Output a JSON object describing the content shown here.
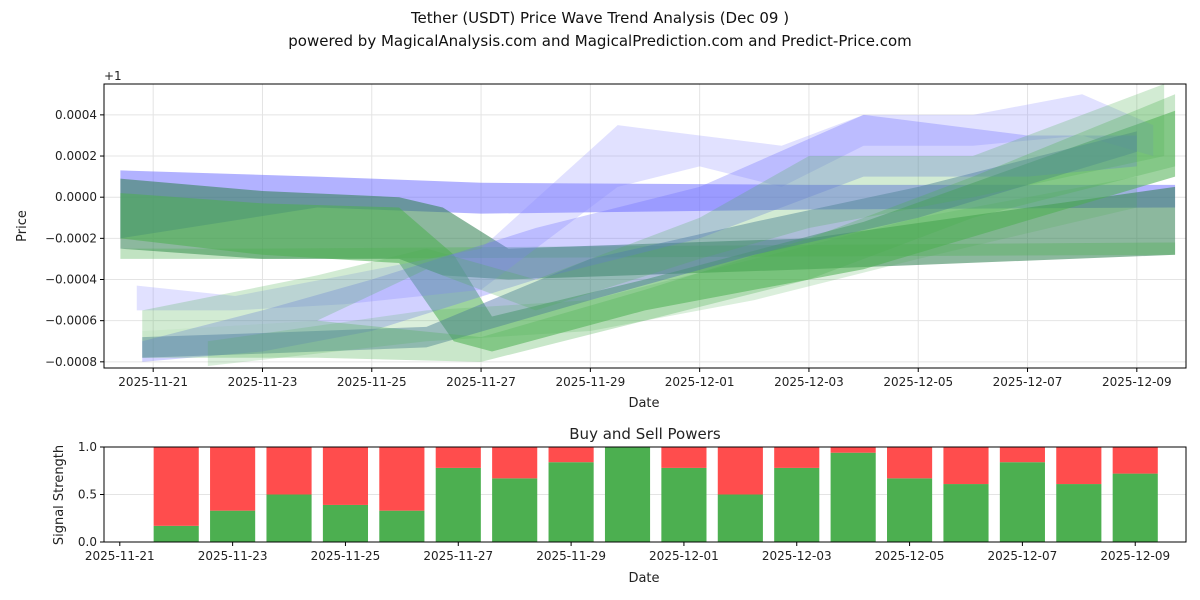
{
  "title": "Tether (USDT) Price Wave Trend Analysis (Dec 09 )",
  "subtitle": "powered by MagicalAnalysis.com and MagicalPrediction.com and Predict-Price.com",
  "watermarks": [
    "MagicalAnalysis.com",
    "MagicalPrediction.com"
  ],
  "chart_data": [
    {
      "type": "area",
      "title": "",
      "xlabel": "Date",
      "ylabel": "Price",
      "offset_label": "+1",
      "x_ticks": [
        "2025-11-21",
        "2025-11-23",
        "2025-11-25",
        "2025-11-27",
        "2025-11-29",
        "2025-12-01",
        "2025-12-03",
        "2025-12-05",
        "2025-12-07",
        "2025-12-09"
      ],
      "y_ticks": [
        "0.0004",
        "0.0002",
        "0.0000",
        "−0.0002",
        "−0.0004",
        "−0.0006",
        "−0.0008"
      ],
      "y_tick_values": [
        0.0004,
        0.0002,
        0,
        -0.0002,
        -0.0004,
        -0.0006,
        -0.0008
      ],
      "xlim_days_from_2025-11-21": [
        -0.9,
        18.9
      ],
      "ylim": [
        -0.00083,
        0.00055
      ],
      "grid": true,
      "bands": [
        {
          "color": "#6666ff",
          "opacity": 0.5,
          "points": [
            [
              -0.6,
              -0.0002,
              0.00013
            ],
            [
              3,
              -5e-05,
              0.0001
            ],
            [
              6,
              -8e-05,
              7e-05
            ],
            [
              12,
              -6e-05,
              6e-05
            ],
            [
              18.7,
              -5e-05,
              6e-05
            ]
          ]
        },
        {
          "color": "#2e7d4f",
          "opacity": 0.55,
          "points": [
            [
              -0.6,
              -0.00025,
              9e-05
            ],
            [
              2,
              -0.0003,
              3e-05
            ],
            [
              4.5,
              -0.0003,
              0
            ],
            [
              5.3,
              -0.00038,
              -5e-05
            ],
            [
              6.5,
              -0.0004,
              -0.00025
            ],
            [
              12,
              -0.00035,
              -0.0002
            ],
            [
              18.7,
              -0.00028,
              5e-05
            ]
          ]
        },
        {
          "color": "#4caf50",
          "opacity": 0.55,
          "points": [
            [
              -0.6,
              -0.0002,
              2e-05
            ],
            [
              2,
              -0.00028,
              -3e-05
            ],
            [
              4.5,
              -0.00032,
              -5e-05
            ],
            [
              5.5,
              -0.0007,
              -0.00028
            ],
            [
              6.2,
              -0.00075,
              -0.00058
            ],
            [
              9,
              -0.00055,
              -0.0004
            ],
            [
              13,
              -0.00035,
              -0.00012
            ],
            [
              18.7,
              0.0001,
              0.00042
            ]
          ]
        },
        {
          "color": "#4caf50",
          "opacity": 0.35,
          "points": [
            [
              -0.6,
              -0.0003,
              -0.00025
            ],
            [
              2,
              -0.0003,
              -0.00025
            ],
            [
              18.7,
              -0.00028,
              -0.00022
            ]
          ]
        },
        {
          "color": "#8888ff",
          "opacity": 0.25,
          "points": [
            [
              -0.3,
              -0.00055,
              -0.00043
            ],
            [
              1.5,
              -0.00055,
              -0.00048
            ],
            [
              3.5,
              -0.00052,
              -0.00038
            ],
            [
              6,
              -0.00045,
              -0.00025
            ],
            [
              8.5,
              5e-05,
              0.00035
            ],
            [
              10,
              0.00015,
              0.0003
            ],
            [
              11.5,
              5e-05,
              0.00025
            ],
            [
              13,
              0.00025,
              0.0004
            ],
            [
              15,
              0.00025,
              0.0004
            ],
            [
              17,
              0.0003,
              0.0005
            ],
            [
              18.3,
              0.0002,
              0.00035
            ]
          ]
        },
        {
          "color": "#4a6fa8",
          "opacity": 0.45,
          "points": [
            [
              -0.2,
              -0.00078,
              -0.00068
            ],
            [
              2,
              -0.00076,
              -0.00066
            ],
            [
              5,
              -0.00073,
              -0.00063
            ],
            [
              8,
              -0.0005,
              -0.0003
            ],
            [
              11,
              -0.00028,
              -0.00012
            ],
            [
              14,
              -0.0001,
              5e-05
            ],
            [
              18,
              0.00022,
              0.00032
            ]
          ]
        },
        {
          "color": "#6666ff",
          "opacity": 0.3,
          "points": [
            [
              -0.2,
              -0.0008,
              -0.0007
            ],
            [
              2,
              -0.00075,
              -0.00055
            ],
            [
              4,
              -0.00065,
              -0.0004
            ],
            [
              7,
              -0.0004,
              -0.00015
            ],
            [
              10,
              -0.0002,
              5e-05
            ],
            [
              13,
              0.0001,
              0.0004
            ],
            [
              16,
              0.0001,
              0.0003
            ],
            [
              18,
              0.00015,
              0.0003
            ]
          ]
        },
        {
          "color": "#4caf50",
          "opacity": 0.3,
          "points": [
            [
              -0.2,
              -0.00078,
              -0.00065
            ],
            [
              3,
              -0.00078,
              -0.0006
            ],
            [
              6,
              -0.0008,
              -0.00068
            ],
            [
              9,
              -0.0006,
              -0.00045
            ],
            [
              12,
              -0.0004,
              -0.0002
            ],
            [
              15,
              -0.0001,
              0.0001
            ],
            [
              18.7,
              0.00015,
              0.0005
            ]
          ]
        },
        {
          "color": "#4caf50",
          "opacity": 0.25,
          "points": [
            [
              -0.2,
              -0.00065,
              -0.00055
            ],
            [
              3,
              -0.0006,
              -0.00038
            ],
            [
              5,
              -0.00035,
              -0.00025
            ],
            [
              7,
              -0.00055,
              -0.0004
            ],
            [
              10,
              -0.0003,
              -0.0001
            ],
            [
              12,
              -0.00015,
              0.0002
            ],
            [
              15,
              0,
              0.0002
            ],
            [
              18.5,
              0.0002,
              0.00055
            ]
          ]
        },
        {
          "color": "#4caf50",
          "opacity": 0.2,
          "points": [
            [
              1,
              -0.00082,
              -0.0007
            ],
            [
              5,
              -0.0007,
              -0.00055
            ],
            [
              8,
              -0.00065,
              -0.0005
            ],
            [
              11,
              -0.0005,
              -0.0003
            ],
            [
              14,
              -0.0003,
              -0.0001
            ],
            [
              18,
              -5e-05,
              0.0001
            ]
          ]
        }
      ]
    },
    {
      "type": "bar",
      "title": "Buy and Sell Powers",
      "xlabel": "Date",
      "ylabel": "Signal Strength",
      "x_ticks": [
        "2025-11-21",
        "2025-11-23",
        "2025-11-25",
        "2025-11-27",
        "2025-11-29",
        "2025-12-01",
        "2025-12-03",
        "2025-12-05",
        "2025-12-07",
        "2025-12-09"
      ],
      "y_ticks": [
        "0.0",
        "0.5",
        "1.0"
      ],
      "ylim": [
        0,
        1
      ],
      "xlim_days_from_2025-11-21": [
        -0.28,
        18.9
      ],
      "categories": [
        "2025-11-22",
        "2025-11-23",
        "2025-11-24",
        "2025-11-25",
        "2025-11-26",
        "2025-11-27",
        "2025-11-28",
        "2025-11-29",
        "2025-11-30",
        "2025-12-01",
        "2025-12-02",
        "2025-12-03",
        "2025-12-04",
        "2025-12-05",
        "2025-12-06",
        "2025-12-07",
        "2025-12-08",
        "2025-12-09"
      ],
      "series": [
        {
          "name": "Buy",
          "color": "#4caf50",
          "values": [
            0.17,
            0.33,
            0.5,
            0.39,
            0.33,
            0.78,
            0.67,
            0.84,
            1.0,
            0.78,
            0.5,
            0.78,
            0.94,
            0.67,
            0.61,
            0.84,
            0.61,
            0.72
          ]
        },
        {
          "name": "Sell",
          "color": "#ff4d4d",
          "values": [
            0.83,
            0.67,
            0.5,
            0.61,
            0.67,
            0.22,
            0.33,
            0.16,
            0.0,
            0.22,
            0.5,
            0.22,
            0.06,
            0.33,
            0.39,
            0.16,
            0.39,
            0.28
          ]
        }
      ]
    }
  ]
}
